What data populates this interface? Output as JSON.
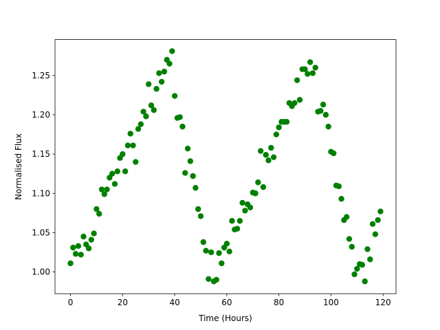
{
  "chart_data": {
    "type": "scatter",
    "x_label": "Time (Hours)",
    "y_label": "Normalised Flux",
    "color": "#008000",
    "x": [
      0,
      1,
      2,
      3,
      4,
      5,
      6,
      7,
      8,
      9,
      10,
      11,
      12,
      13,
      14,
      15,
      16,
      17,
      18,
      19,
      20,
      21,
      22,
      23,
      24,
      25,
      26,
      27,
      28,
      29,
      30,
      31,
      32,
      33,
      34,
      35,
      36,
      37,
      38,
      39,
      40,
      41,
      42,
      43,
      44,
      45,
      46,
      47,
      48,
      49,
      50,
      51,
      52,
      53,
      54,
      55,
      56,
      57,
      58,
      59,
      60,
      61,
      62,
      63,
      64,
      65,
      66,
      67,
      68,
      69,
      70,
      71,
      72,
      73,
      74,
      75,
      76,
      77,
      78,
      79,
      80,
      81,
      82,
      83,
      84,
      85,
      86,
      87,
      88,
      89,
      90,
      91,
      92,
      93,
      94,
      95,
      96,
      97,
      98,
      99,
      100,
      101,
      102,
      103,
      104,
      105,
      106,
      107,
      108,
      109,
      110,
      111,
      112,
      113,
      114,
      115,
      116,
      117,
      118,
      119
    ],
    "values": [
      1.011,
      1.031,
      1.023,
      1.033,
      1.022,
      1.045,
      1.035,
      1.03,
      1.041,
      1.049,
      1.08,
      1.074,
      1.105,
      1.099,
      1.105,
      1.12,
      1.125,
      1.112,
      1.128,
      1.145,
      1.15,
      1.128,
      1.161,
      1.176,
      1.161,
      1.14,
      1.182,
      1.188,
      1.204,
      1.198,
      1.239,
      1.212,
      1.206,
      1.233,
      1.253,
      1.242,
      1.255,
      1.27,
      1.265,
      1.281,
      1.224,
      1.196,
      1.197,
      1.185,
      1.126,
      1.157,
      1.141,
      1.122,
      1.107,
      1.08,
      1.071,
      1.038,
      1.027,
      0.991,
      1.025,
      0.988,
      0.99,
      1.024,
      1.011,
      1.031,
      1.036,
      1.026,
      1.065,
      1.054,
      1.055,
      1.065,
      1.088,
      1.078,
      1.086,
      1.082,
      1.101,
      1.1,
      1.114,
      1.154,
      1.108,
      1.149,
      1.142,
      1.158,
      1.146,
      1.175,
      1.184,
      1.191,
      1.191,
      1.191,
      1.215,
      1.211,
      1.215,
      1.244,
      1.219,
      1.258,
      1.258,
      1.252,
      1.267,
      1.253,
      1.26,
      1.204,
      1.205,
      1.213,
      1.2,
      1.185,
      1.153,
      1.151,
      1.11,
      1.109,
      1.093,
      1.066,
      1.07,
      1.042,
      1.032,
      0.997,
      1.004,
      1.01,
      1.009,
      0.988,
      1.029,
      1.016,
      1.061,
      1.048,
      1.066,
      1.077
    ],
    "xlim": [
      -5.95,
      124.95
    ],
    "ylim": [
      0.9723,
      1.2957
    ],
    "xticks": [
      0,
      20,
      40,
      60,
      80,
      100,
      120
    ],
    "yticks": [
      {
        "value": 1.0,
        "label": "1.00"
      },
      1.05,
      {
        "value": 1.1,
        "label": "1.10"
      },
      1.15,
      {
        "value": 1.2,
        "label": "1.20"
      },
      1.25
    ]
  }
}
